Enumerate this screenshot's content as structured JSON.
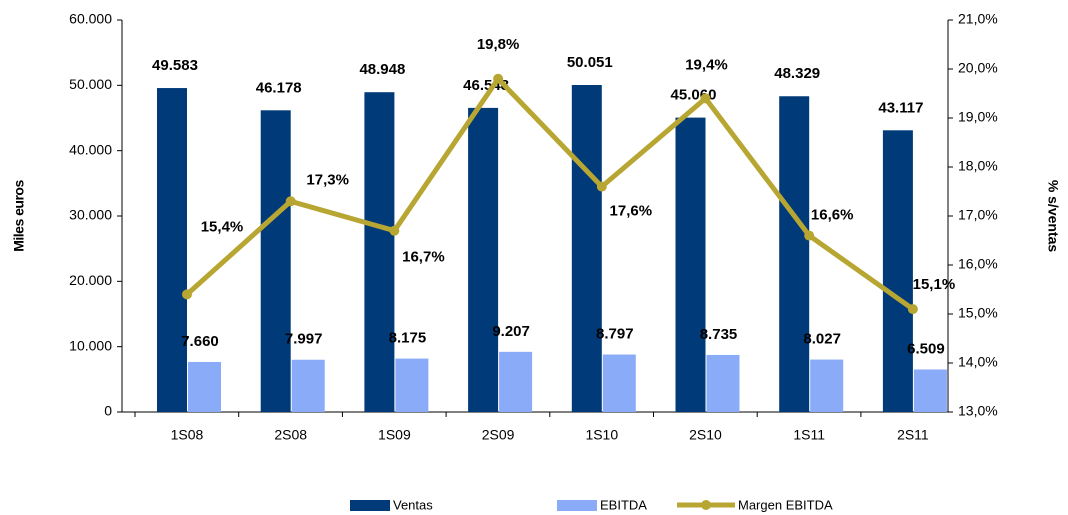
{
  "chart_data": {
    "type": "bar_line",
    "categories": [
      "1S08",
      "2S08",
      "1S09",
      "2S09",
      "1S10",
      "2S10",
      "1S11",
      "2S11"
    ],
    "y_label": "Miles euros",
    "y2_label": "% s/ventas",
    "ylim": [
      0,
      60000
    ],
    "yticks": [
      0,
      {
        "value": 10000,
        "label": "10.000"
      },
      {
        "value": 20000,
        "label": "20.000"
      },
      {
        "value": 30000,
        "label": "30.000"
      },
      {
        "value": 40000,
        "label": "40.000"
      },
      {
        "value": 50000,
        "label": "50.000"
      },
      {
        "value": 60000,
        "label": "60.000"
      }
    ],
    "y2lim": [
      13,
      21
    ],
    "y2ticks": [
      {
        "value": 13,
        "label": "13,0%"
      },
      {
        "value": 14,
        "label": "14,0%"
      },
      {
        "value": 15,
        "label": "15,0%"
      },
      {
        "value": 16,
        "label": "16,0%"
      },
      {
        "value": 17,
        "label": "17,0%"
      },
      {
        "value": 18,
        "label": "18,0%"
      },
      {
        "value": 19,
        "label": "19,0%"
      },
      {
        "value": 20,
        "label": "20,0%"
      },
      {
        "value": 21,
        "label": "21,0%"
      }
    ],
    "series": [
      {
        "name": "Ventas",
        "type": "bar",
        "color": "#003a78",
        "values": [
          49583,
          46178,
          48948,
          46548,
          50051,
          45060,
          48329,
          43117
        ],
        "value_labels": [
          "49.583",
          "46.178",
          "48.948",
          "46.548",
          "50.051",
          "45.060",
          "48.329",
          "43.117"
        ]
      },
      {
        "name": "EBITDA",
        "type": "bar",
        "color": "#8aabf7",
        "values": [
          7660,
          7997,
          8175,
          9207,
          8797,
          8735,
          8027,
          6509
        ],
        "value_labels": [
          "7.660",
          "7.997",
          "8.175",
          "9.207",
          "8.797",
          "8.735",
          "8.027",
          "6.509"
        ]
      },
      {
        "name": "Margen EBITDA",
        "type": "line",
        "axis": "y2",
        "color": "#b8a632",
        "values": [
          15.4,
          17.3,
          16.7,
          19.8,
          17.6,
          19.4,
          16.6,
          15.1
        ],
        "value_labels": [
          "15,4%",
          "17,3%",
          "16,7%",
          "19,8%",
          "17,6%",
          "19,4%",
          "16,6%",
          "15,1%"
        ]
      }
    ]
  }
}
